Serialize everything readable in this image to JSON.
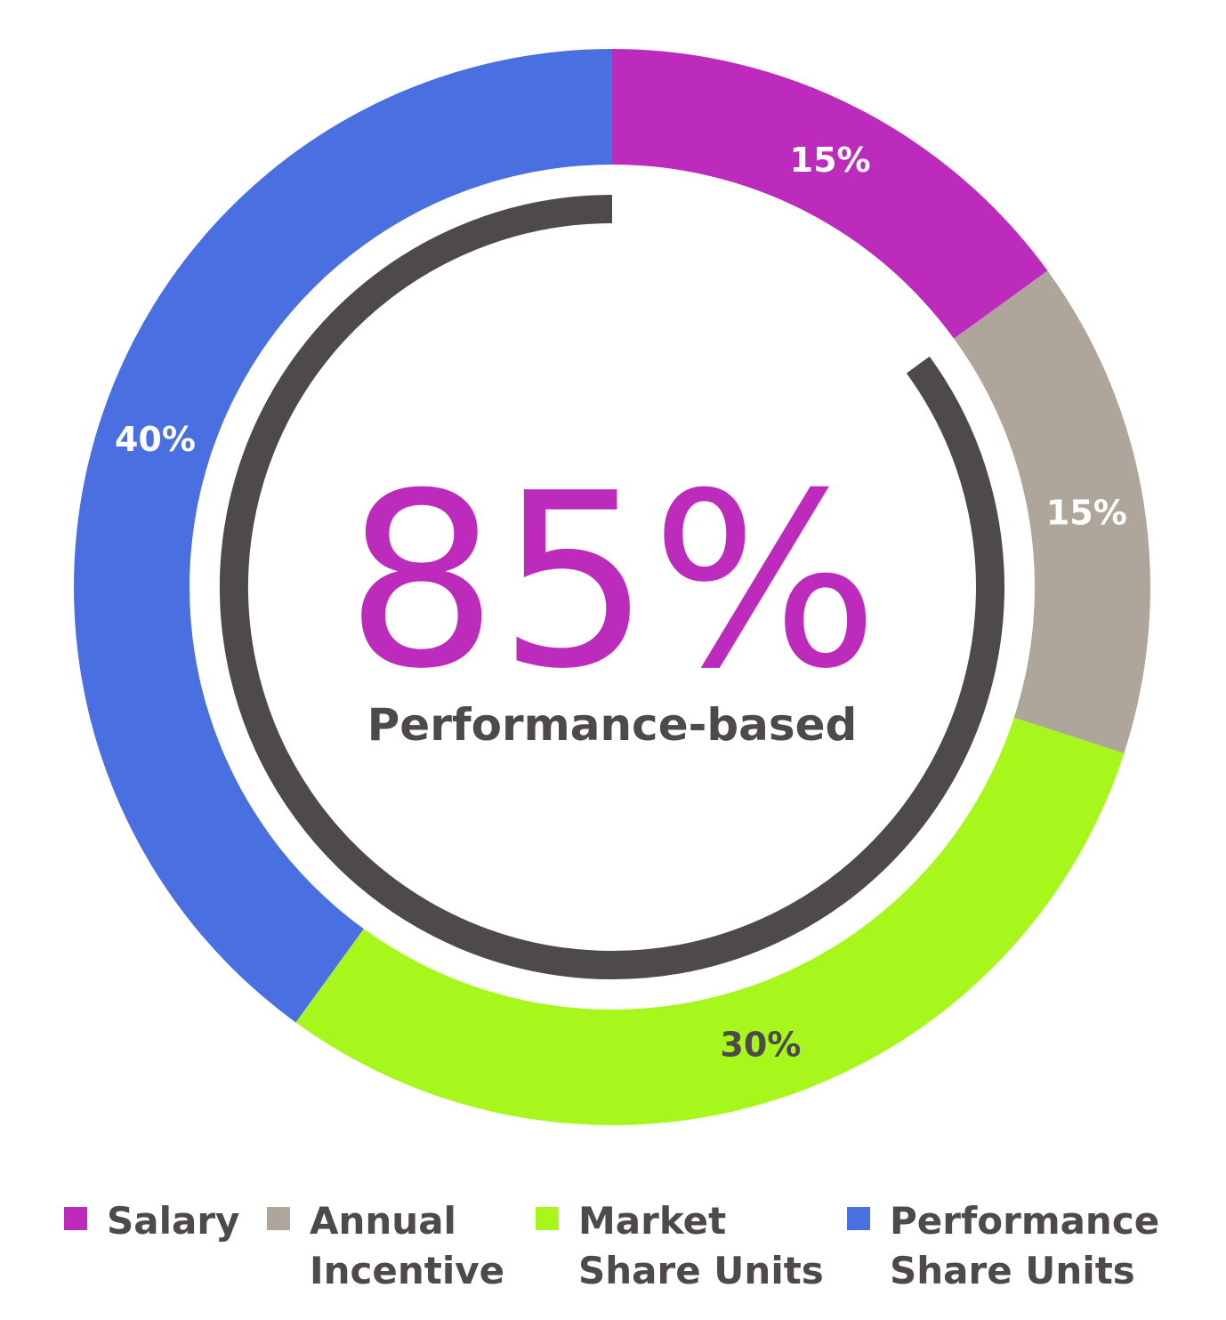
{
  "chart_data": {
    "type": "pie",
    "style": "donut",
    "slices": [
      {
        "name": "Salary",
        "value": 15,
        "label": "15%",
        "color": "#bc2bbb",
        "label_color": "#ffffff"
      },
      {
        "name": "Annual Incentive",
        "value": 15,
        "label": "15%",
        "color": "#aea69b",
        "label_color": "#ffffff"
      },
      {
        "name": "Market Share Units",
        "value": 30,
        "label": "30%",
        "color": "#a8f71c",
        "label_color": "#4f4a4a"
      },
      {
        "name": "Performance Share Units",
        "value": 40,
        "label": "40%",
        "color": "#4a6fe0",
        "label_color": "#ffffff"
      }
    ],
    "center": {
      "value": "85%",
      "caption": "Performance-based",
      "value_color": "#bc2bbb",
      "caption_color": "#4f4a4a"
    },
    "inner_arc": {
      "value": 85,
      "color": "#4f4a4a"
    },
    "legend": {
      "placement": "bottom",
      "items": [
        {
          "lines": [
            "Salary"
          ],
          "color": "#bc2bbb"
        },
        {
          "lines": [
            "Annual",
            "Incentive"
          ],
          "color": "#aea69b"
        },
        {
          "lines": [
            "Market",
            "Share Units"
          ],
          "color": "#a8f71c"
        },
        {
          "lines": [
            "Performance",
            "Share Units"
          ],
          "color": "#4a6fe0"
        }
      ]
    }
  }
}
